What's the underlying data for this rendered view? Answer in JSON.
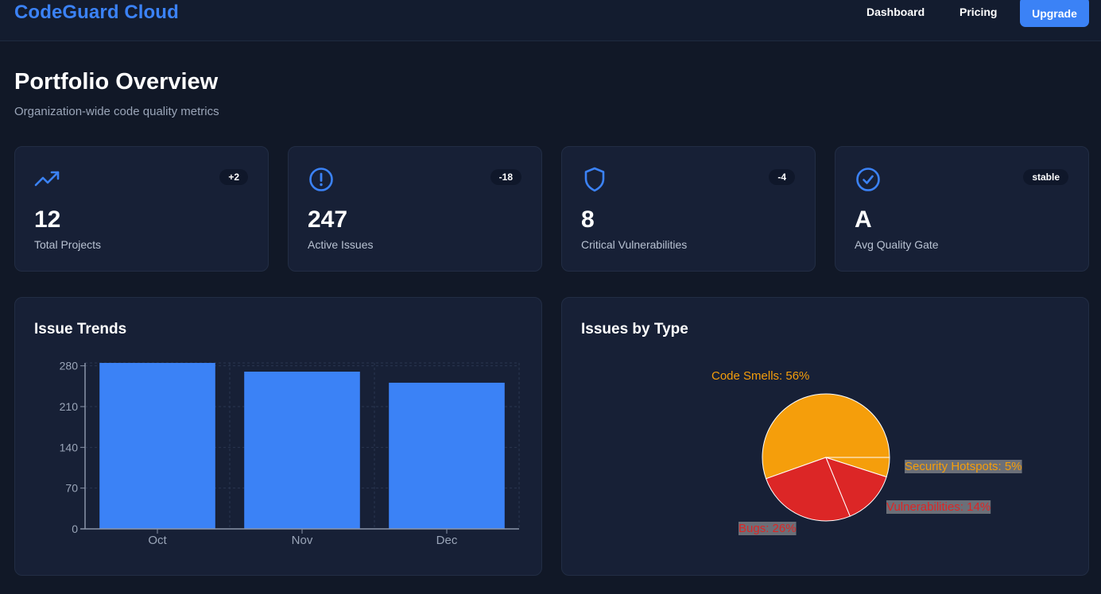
{
  "app": {
    "brand": "CodeGuard Cloud"
  },
  "nav": {
    "dashboard": "Dashboard",
    "pricing": "Pricing",
    "upgrade": "Upgrade"
  },
  "page": {
    "title": "Portfolio Overview",
    "subtitle": "Organization-wide code quality metrics"
  },
  "stats": [
    {
      "icon": "trending-up-icon",
      "value": "12",
      "label": "Total Projects",
      "badge": "+2"
    },
    {
      "icon": "alert-circle-icon",
      "value": "247",
      "label": "Active Issues",
      "badge": "-18"
    },
    {
      "icon": "shield-icon",
      "value": "8",
      "label": "Critical Vulnerabilities",
      "badge": "-4"
    },
    {
      "icon": "check-circle-icon",
      "value": "A",
      "label": "Avg Quality Gate",
      "badge": "stable"
    }
  ],
  "colors": {
    "accent": "#3b82f6",
    "background": "#111827",
    "card": "#172036",
    "smells": "#f59e0b",
    "bugs": "#dc2626"
  },
  "trends": {
    "title": "Issue Trends",
    "chart_data": {
      "type": "bar",
      "categories": [
        "Oct",
        "Nov",
        "Dec"
      ],
      "values": [
        285,
        270,
        251
      ],
      "ylim": [
        0,
        285
      ],
      "yticks": [
        0,
        70,
        140,
        210,
        280
      ],
      "grid": true,
      "color": "#3b82f6"
    }
  },
  "types": {
    "title": "Issues by Type",
    "chart_data": {
      "type": "pie",
      "slices": [
        {
          "label": "Code Smells: 56%",
          "value": 56,
          "color": "#f59e0b"
        },
        {
          "label": "Bugs: 26%",
          "value": 26,
          "color": "#dc2626"
        },
        {
          "label": "Vulnerabilities: 14%",
          "value": 14,
          "color": "#dc2626"
        },
        {
          "label": "Security Hotspots: 5%",
          "value": 5,
          "color": "#f59e0b"
        }
      ]
    }
  }
}
